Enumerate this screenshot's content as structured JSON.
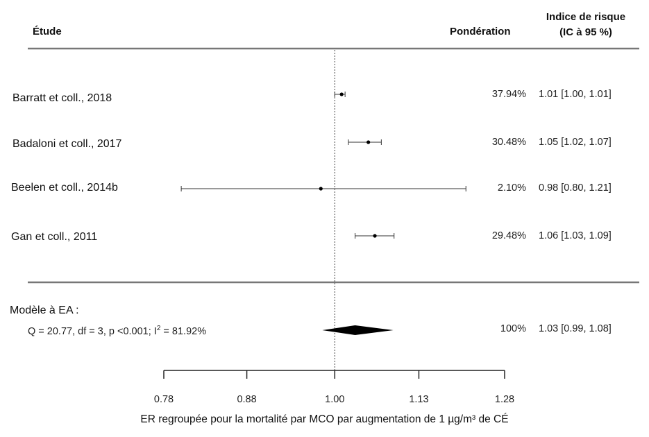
{
  "headers": {
    "study": "Étude",
    "weight": "Pondération",
    "risk_line1": "Indice de risque",
    "risk_line2": "(IC à 95 %)"
  },
  "chart_data": {
    "type": "forest",
    "reference_line": 1.0,
    "xaxis": {
      "ticks": [
        0.78,
        0.88,
        1.0,
        1.13,
        1.28
      ],
      "tick_labels": [
        "0.78",
        "0.88",
        "1.00",
        "1.13",
        "1.28"
      ],
      "label": "ER regroupée pour la mortalité par MCO par augmentation de 1 µg/m³ de CÉ"
    },
    "studies": [
      {
        "name": "Barratt et coll., 2018",
        "estimate": 1.01,
        "lower": 1.0,
        "upper": 1.01,
        "weight": "37.94%",
        "ci_text": "1.01 [1.00, 1.01]"
      },
      {
        "name": "Badaloni et coll., 2017",
        "estimate": 1.05,
        "lower": 1.02,
        "upper": 1.07,
        "weight": "30.48%",
        "ci_text": "1.05 [1.02, 1.07]"
      },
      {
        "name": "Beelen et coll., 2014b",
        "estimate": 0.98,
        "lower": 0.8,
        "upper": 1.21,
        "weight": "2.10%",
        "ci_text": "0.98 [0.80, 1.21]"
      },
      {
        "name": "Gan et coll., 2011",
        "estimate": 1.06,
        "lower": 1.03,
        "upper": 1.09,
        "weight": "29.48%",
        "ci_text": "1.06 [1.03, 1.09]"
      }
    ],
    "pooled": {
      "label": "Modèle à EA :",
      "stats_prefix": "Q = 20.77, df = 3, p  <0.001; I",
      "stats_sup": "2",
      "stats_suffix": " = 81.92%",
      "estimate": 1.03,
      "lower": 0.99,
      "upper": 1.08,
      "weight": "100%",
      "ci_text": "1.03 [0.99, 1.08]"
    }
  }
}
